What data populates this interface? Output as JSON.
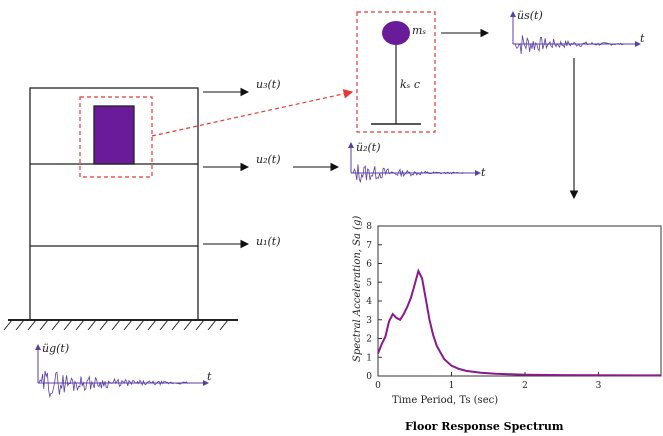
{
  "labels": {
    "u3": "u₃(t)",
    "u2": "u₂(t)",
    "u1": "u₁(t)",
    "ug": "üg(t)",
    "u2_acc": "ü₂(t)",
    "us_acc": "üs(t)",
    "ms": "mₛ",
    "kc": "kₛ c",
    "t": "t"
  },
  "caption": "Floor Response Spectrum",
  "colors": {
    "signal": "#5b3fa6",
    "spectrum": "#8a1a8a",
    "equipment": "#6a1b9a",
    "dashed": "#e53935",
    "structure": "#222222"
  },
  "chart_data": {
    "type": "line",
    "title": "",
    "xlabel": "Time Period, Ts (sec)",
    "ylabel": "Spectral Acceleration, Sa (g)",
    "xlim": [
      0,
      4
    ],
    "ylim": [
      0,
      8
    ],
    "xticks": [
      "0",
      "1",
      "2",
      "3"
    ],
    "yticks": [
      "0",
      "1",
      "2",
      "3",
      "4",
      "5",
      "6",
      "7",
      "8"
    ],
    "grid": false,
    "series": [
      {
        "x": [
          0.0,
          0.05,
          0.1,
          0.15,
          0.2,
          0.25,
          0.3,
          0.35,
          0.4,
          0.45,
          0.5,
          0.55,
          0.6,
          0.65,
          0.7,
          0.75,
          0.8,
          0.9,
          1.0,
          1.1,
          1.2,
          1.4,
          1.6,
          1.8,
          2.0,
          2.5,
          3.0,
          3.5,
          4.0
        ],
        "y": [
          1.2,
          1.7,
          2.1,
          2.9,
          3.3,
          3.1,
          3.0,
          3.3,
          3.7,
          4.2,
          4.9,
          5.6,
          5.2,
          4.1,
          3.0,
          2.2,
          1.6,
          0.9,
          0.55,
          0.38,
          0.27,
          0.17,
          0.12,
          0.09,
          0.07,
          0.05,
          0.04,
          0.03,
          0.03
        ]
      }
    ]
  }
}
